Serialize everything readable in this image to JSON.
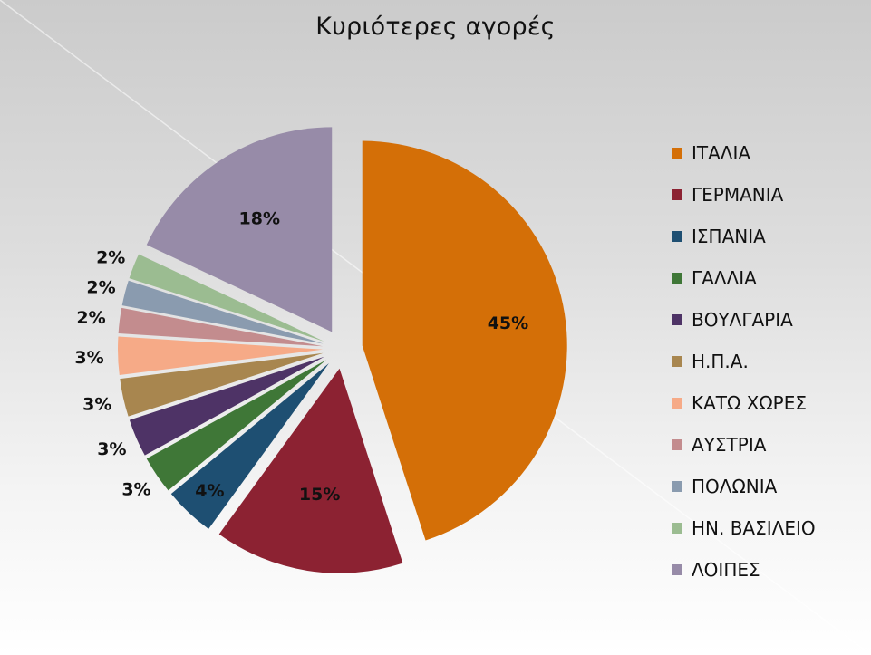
{
  "chart_data": {
    "type": "pie",
    "title": "Κυριότερες αγορές",
    "categories": [
      "ΙΤΑΛΙΑ",
      "ΓΕΡΜΑΝΙΑ",
      "ΙΣΠΑΝΙΑ",
      "ΓΑΛΛΙΑ",
      "ΒΟΥΛΓΑΡΙΑ",
      "Η.Π.Α.",
      "ΚΑΤΩ ΧΩΡΕΣ",
      "ΑΥΣΤΡΙΑ",
      "ΠΟΛΩΝΙΑ",
      "ΗΝ. ΒΑΣΙΛΕΙΟ",
      "ΛΟΙΠΕΣ"
    ],
    "values": [
      45,
      15,
      4,
      3,
      3,
      3,
      3,
      2,
      2,
      2,
      18
    ],
    "labels": [
      "45%",
      "15%",
      "4%",
      "3%",
      "3%",
      "3%",
      "3%",
      "2%",
      "2%",
      "2%",
      "18%"
    ],
    "colors": [
      "#D46F07",
      "#8C2232",
      "#1E4F72",
      "#3F7737",
      "#4E3366",
      "#A8864F",
      "#F6AA87",
      "#C38C8E",
      "#8A9BAF",
      "#9BBC91",
      "#978BA8"
    ],
    "legend_position": "right"
  }
}
